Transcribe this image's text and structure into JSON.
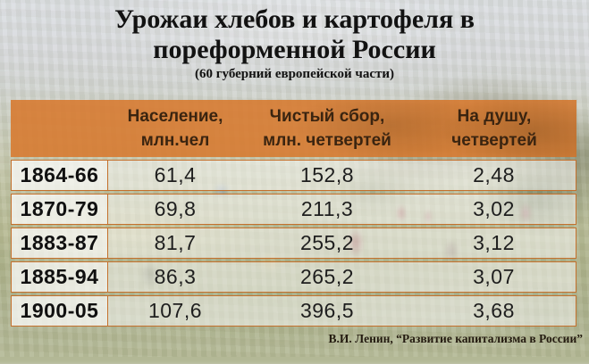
{
  "slide": {
    "title_line1": "Урожаи хлебов и картофеля в",
    "title_line2": "пореформенной России",
    "subtitle": "(60 губерний европейской части)",
    "credit": "В.И. Ленин, “Развитие капитализма в России”"
  },
  "table": {
    "headers": [
      {
        "line1": "Население,",
        "line2": "млн.чел"
      },
      {
        "line1": "Чистый сбор,",
        "line2": "млн. четвертей"
      },
      {
        "line1": "На душу,",
        "line2": "четвертей"
      }
    ],
    "rows": [
      {
        "period": "1864-66",
        "population_mln": "61,4",
        "net_yield_mln_chetverts": "152,8",
        "per_capita_chetverts": "2,48"
      },
      {
        "period": "1870-79",
        "population_mln": "69,8",
        "net_yield_mln_chetverts": "211,3",
        "per_capita_chetverts": "3,02"
      },
      {
        "period": "1883-87",
        "population_mln": "81,7",
        "net_yield_mln_chetverts": "255,2",
        "per_capita_chetverts": "3,12"
      },
      {
        "period": "1885-94",
        "population_mln": "86,3",
        "net_yield_mln_chetverts": "265,2",
        "per_capita_chetverts": "3,07"
      },
      {
        "period": "1900-05",
        "population_mln": "107,6",
        "net_yield_mln_chetverts": "396,5",
        "per_capita_chetverts": "3,68"
      }
    ]
  },
  "colors": {
    "header_orange": "#d7792e",
    "border_orange": "#c4702c"
  }
}
